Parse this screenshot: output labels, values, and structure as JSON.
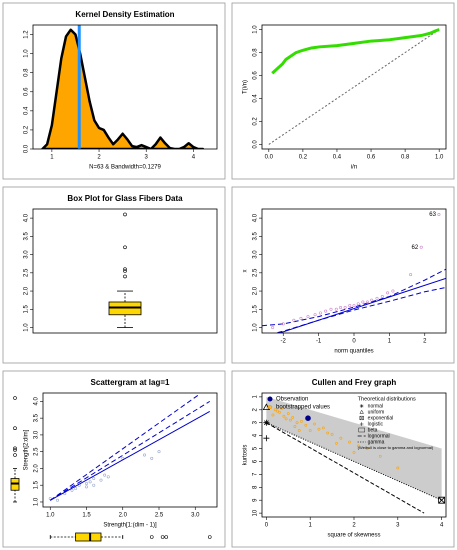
{
  "chart_data": [
    {
      "type": "area",
      "title": "Kernel Density Estimation",
      "xlabel": "N=63 & Bandwidth=0.1279",
      "x": [
        0.8,
        0.9,
        1.0,
        1.1,
        1.2,
        1.3,
        1.4,
        1.5,
        1.6,
        1.7,
        1.8,
        1.9,
        2.0,
        2.1,
        2.2,
        2.3,
        2.4,
        2.5,
        2.6,
        2.7,
        2.8,
        2.9,
        3.0,
        3.1,
        3.2,
        3.3,
        3.4,
        3.5,
        3.6,
        3.7,
        3.8,
        3.9,
        4.0,
        4.1,
        4.2
      ],
      "values": [
        0,
        0.05,
        0.25,
        0.6,
        0.95,
        1.18,
        1.25,
        1.2,
        1.0,
        0.75,
        0.5,
        0.3,
        0.22,
        0.2,
        0.12,
        0.05,
        0.1,
        0.16,
        0.1,
        0.03,
        0.02,
        0.04,
        0.02,
        0.0,
        0.05,
        0.12,
        0.06,
        0.01,
        0.0,
        0.0,
        0.02,
        0.06,
        0.02,
        0.0,
        0
      ],
      "color": "#ffa500",
      "vline": 1.58,
      "vline_color": "#1e90ff",
      "xlim": [
        0.6,
        4.5
      ],
      "xticks": [
        1,
        2,
        3,
        4
      ],
      "ylim": [
        0,
        1.3
      ],
      "yticks": [
        {
          "value": 0,
          "label": "0.0"
        },
        0.2,
        0.4,
        0.6,
        0.8,
        {
          "value": 1,
          "label": "1.0"
        },
        1.2
      ]
    },
    {
      "type": "line",
      "xlabel": "i/n",
      "ylabel": "T(i/n)",
      "x": [
        0.02,
        0.05,
        0.08,
        0.1,
        0.13,
        0.16,
        0.2,
        0.25,
        0.3,
        0.4,
        0.5,
        0.6,
        0.7,
        0.8,
        0.85,
        0.9,
        0.95,
        0.98,
        1.0
      ],
      "values": [
        0.62,
        0.66,
        0.7,
        0.74,
        0.77,
        0.8,
        0.82,
        0.84,
        0.85,
        0.86,
        0.88,
        0.9,
        0.91,
        0.93,
        0.94,
        0.95,
        0.97,
        0.99,
        1.0
      ],
      "color": "#33dd00",
      "lines": [
        {
          "x": [
            0,
            1
          ],
          "y": [
            0,
            1
          ],
          "color": "#666666",
          "dash": "2,2"
        }
      ],
      "xlim": [
        -0.04,
        1.04
      ],
      "xticks": [
        {
          "value": 0,
          "label": "0.0"
        },
        0.2,
        0.4,
        0.6,
        0.8,
        {
          "value": 1,
          "label": "1.0"
        }
      ],
      "ylim": [
        -0.04,
        1.04
      ],
      "yticks": [
        {
          "value": 0,
          "label": "0.0"
        },
        0.2,
        0.4,
        0.6,
        0.8,
        {
          "value": 1,
          "label": "1.0"
        }
      ]
    },
    {
      "type": "box",
      "title": "Box Plot for Glass Fibers Data",
      "box": {
        "min": 1.0,
        "q1": 1.35,
        "median": 1.55,
        "q3": 1.7,
        "max": 2.0
      },
      "outliers": [
        2.4,
        2.55,
        2.6,
        3.2,
        4.1
      ],
      "color": "#ffd700",
      "ylim": [
        0.85,
        4.25
      ],
      "yticks": [
        {
          "value": 1,
          "label": "1.0"
        },
        1.5,
        {
          "value": 2,
          "label": "2.0"
        },
        2.5,
        {
          "value": 3,
          "label": "3.0"
        },
        3.5,
        {
          "value": 4,
          "label": "4.0"
        }
      ]
    },
    {
      "type": "qq",
      "xlabel": "norm quantiles",
      "ylabel": "x",
      "points": {
        "x": [
          -2.3,
          -2.0,
          -1.7,
          -1.5,
          -1.3,
          -1.1,
          -0.95,
          -0.8,
          -0.65,
          -0.5,
          -0.38,
          -0.25,
          -0.12,
          0.0,
          0.12,
          0.25,
          0.38,
          0.5,
          0.65,
          0.8,
          0.95,
          1.1,
          1.6,
          1.9,
          2.4
        ],
        "y": [
          1.0,
          1.1,
          1.2,
          1.25,
          1.3,
          1.35,
          1.4,
          1.45,
          1.5,
          1.5,
          1.55,
          1.55,
          1.6,
          1.6,
          1.65,
          1.7,
          1.7,
          1.75,
          1.8,
          1.85,
          1.95,
          2.0,
          2.45,
          3.2,
          4.1
        ],
        "color": "#cc88cc"
      },
      "point_labels": [
        {
          "text": "63",
          "x": 2.4,
          "y": 4.1
        },
        {
          "text": "62",
          "x": 1.9,
          "y": 3.2
        }
      ],
      "lines": [
        {
          "x": [
            -2.6,
            2.6
          ],
          "y": [
            0.69,
            2.35
          ],
          "color": "#0000cc",
          "dash": ""
        },
        {
          "x": [
            -2.6,
            -2,
            -1,
            0,
            1,
            2,
            2.6
          ],
          "y": [
            1.05,
            1.1,
            1.3,
            1.56,
            1.85,
            2.3,
            2.6
          ],
          "color": "#0000cc",
          "dash": "5,3"
        },
        {
          "x": [
            -2.6,
            -2,
            -1,
            0,
            1,
            2,
            2.6
          ],
          "y": [
            0.75,
            0.9,
            1.2,
            1.48,
            1.72,
            1.98,
            2.1
          ],
          "color": "#0000cc",
          "dash": "5,3"
        }
      ],
      "xlim": [
        -2.6,
        2.6
      ],
      "xticks": [
        -2,
        -1,
        0,
        1,
        2
      ],
      "ylim": [
        0.85,
        4.25
      ],
      "yticks": [
        {
          "value": 1,
          "label": "1.0"
        },
        1.5,
        {
          "value": 2,
          "label": "2.0"
        },
        2.5,
        {
          "value": 3,
          "label": "3.0"
        },
        3.5,
        {
          "value": 4,
          "label": "4.0"
        }
      ]
    },
    {
      "type": "scatter",
      "title": "Scattergram at lag=1",
      "xlabel": "Strength[1:(dim - 1)]",
      "ylabel": "Strength[2:dim]",
      "points": {
        "x": [
          1.0,
          1.1,
          1.2,
          1.3,
          1.35,
          1.4,
          1.5,
          1.5,
          1.55,
          1.6,
          1.6,
          1.7,
          1.75,
          1.8,
          2.0,
          2.3,
          2.4,
          2.5
        ],
        "y": [
          1.1,
          1.05,
          1.25,
          1.35,
          1.4,
          1.5,
          1.45,
          1.55,
          1.6,
          1.5,
          1.7,
          1.65,
          1.8,
          1.75,
          2.3,
          2.4,
          2.3,
          2.5
        ],
        "color": "#99aacc"
      },
      "lines": [
        {
          "x": [
            1.0,
            3.2
          ],
          "y": [
            1.05,
            3.7
          ],
          "color": "#0000cc",
          "dash": ""
        },
        {
          "x": [
            1.0,
            3.2
          ],
          "y": [
            1.05,
            4.0
          ],
          "color": "#0000cc",
          "dash": "5,3"
        },
        {
          "x": [
            1.0,
            3.05
          ],
          "y": [
            1.05,
            4.2
          ],
          "color": "#0000cc",
          "dash": "5,3"
        }
      ],
      "marginal_boxplots": true,
      "xlim": [
        0.9,
        3.3
      ],
      "xticks": [
        {
          "value": 1,
          "label": "1.0"
        },
        1.5,
        {
          "value": 2,
          "label": "2.0"
        },
        2.5,
        {
          "value": 3,
          "label": "3.0"
        }
      ],
      "ylim": [
        0.85,
        4.25
      ],
      "yticks": [
        {
          "value": 1,
          "label": "1.0"
        },
        1.5,
        {
          "value": 2,
          "label": "2.0"
        },
        2.5,
        {
          "value": 3,
          "label": "3.0"
        },
        3.5,
        {
          "value": 4,
          "label": "4.0"
        }
      ]
    },
    {
      "type": "cullen_frey",
      "title": "Cullen and Frey graph",
      "xlabel": "square of skewness",
      "ylabel": "kurtosis",
      "region": {
        "name": "beta",
        "x": [
          0,
          4,
          4,
          0
        ],
        "y": [
          1,
          5,
          9,
          3
        ],
        "color": "#cccccc"
      },
      "points": {
        "name": "bootstrapped values",
        "color": "#ffa500",
        "x": [
          0.1,
          0.2,
          0.3,
          0.35,
          0.4,
          0.5,
          0.55,
          0.6,
          0.7,
          0.8,
          0.9,
          1.1,
          1.2,
          1.3,
          1.5,
          1.7,
          1.9,
          2.1,
          2.3,
          2.6,
          0.15,
          0.45,
          0.65,
          1.0,
          1.4,
          0.25,
          0.75,
          1.6,
          2.0,
          3.0
        ],
        "y": [
          1.8,
          2.0,
          2.2,
          1.9,
          2.5,
          2.3,
          2.8,
          2.6,
          3.0,
          2.9,
          3.2,
          3.1,
          3.5,
          3.4,
          3.9,
          4.2,
          4.5,
          4.8,
          5.0,
          5.6,
          2.4,
          2.7,
          3.3,
          3.6,
          3.8,
          2.1,
          3.6,
          4.6,
          5.3,
          6.5
        ]
      },
      "observation": {
        "name": "Observation",
        "x": 0.95,
        "y": 2.65,
        "color": "#00008b"
      },
      "legend_title": "Theoretical distributions",
      "dists": [
        {
          "name": "normal",
          "x": 0,
          "y": 3,
          "shape": "star"
        },
        {
          "name": "uniform",
          "x": 0,
          "y": 1.8,
          "shape": "triangle"
        },
        {
          "name": "exponential",
          "x": 4,
          "y": 9,
          "shape": "boxx"
        },
        {
          "name": "logistic",
          "x": 0,
          "y": 4.2,
          "shape": "plus"
        }
      ],
      "lines": [
        {
          "name": "lognormal",
          "x": [
            0,
            3.6
          ],
          "y": [
            3,
            10
          ],
          "color": "#000000",
          "dash": "4,2"
        },
        {
          "name": "gamma",
          "x": [
            0,
            4
          ],
          "y": [
            3,
            9
          ],
          "color": "#000000",
          "dash": "1,1.5"
        }
      ],
      "note": "(Weibull is close to gamma and lognormal)",
      "xlim": [
        -0.1,
        4.1
      ],
      "xticks": [
        0,
        1,
        2,
        3,
        4
      ],
      "ylim": [
        10.3,
        0.7
      ],
      "yticks": [
        1,
        2,
        3,
        4,
        5,
        6,
        7,
        8,
        9,
        10
      ]
    }
  ]
}
